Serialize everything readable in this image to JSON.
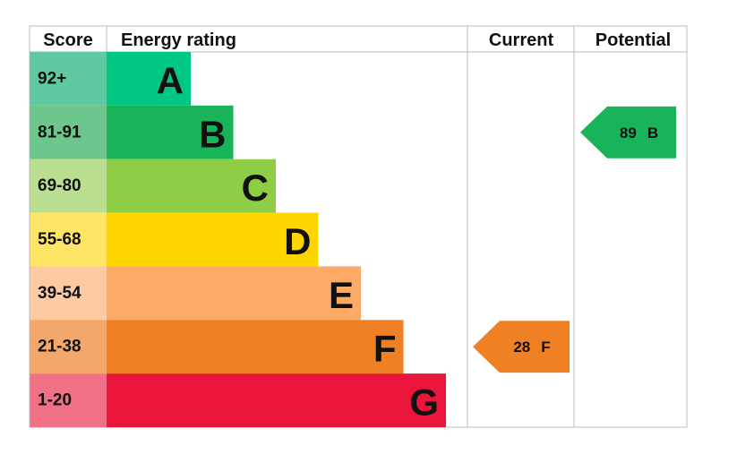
{
  "header": {
    "score": "Score",
    "rating": "Energy rating",
    "current": "Current",
    "potential": "Potential"
  },
  "bands": [
    {
      "score": "92+",
      "letter": "A",
      "color": "#00c781",
      "score_color": "#5fc9a1"
    },
    {
      "score": "81-91",
      "letter": "B",
      "color": "#19b459",
      "score_color": "#6dc68b"
    },
    {
      "score": "69-80",
      "letter": "C",
      "color": "#8dce46",
      "score_color": "#badf91"
    },
    {
      "score": "55-68",
      "letter": "D",
      "color": "#ffd500",
      "score_color": "#ffe566"
    },
    {
      "score": "39-54",
      "letter": "E",
      "color": "#fcaa65",
      "score_color": "#fdcaa2"
    },
    {
      "score": "21-38",
      "letter": "F",
      "color": "#ef8023",
      "score_color": "#f4a76b"
    },
    {
      "score": "1-20",
      "letter": "G",
      "color": "#e9153b",
      "score_color": "#f07186"
    }
  ],
  "current": {
    "value": 28,
    "letter": "F"
  },
  "potential": {
    "value": 89,
    "letter": "B"
  }
}
